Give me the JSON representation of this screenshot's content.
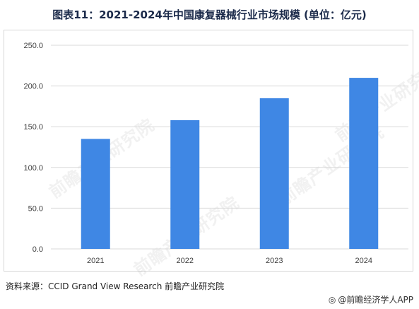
{
  "title": "图表11：2021-2024年中国康复器械行业市场规模 (单位：亿元)",
  "source": "资料来源：CCID Grand View Research 前瞻产业研究院",
  "watermark": "前瞻产业研究院",
  "brand": {
    "icon": "at-sign-icon",
    "text": "@前瞻经济学人APP"
  },
  "colors": {
    "bar": "#3f87e4",
    "grid": "#d9d9d9",
    "axis_text": "#404040"
  },
  "chart_data": {
    "type": "bar",
    "categories": [
      "2021",
      "2022",
      "2023",
      "2024"
    ],
    "values": [
      135,
      158,
      185,
      210
    ],
    "ylim": [
      0,
      250
    ],
    "yticks": [
      "0.0",
      "50.0",
      "100.0",
      "150.0",
      "200.0",
      "250.0"
    ],
    "grid": true,
    "xlabel": "",
    "ylabel": ""
  }
}
